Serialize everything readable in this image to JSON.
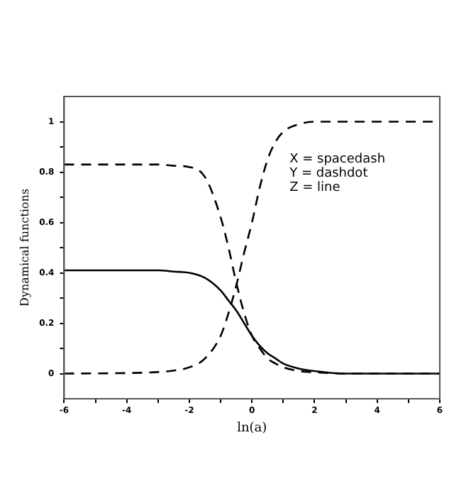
{
  "chart_data": {
    "type": "line",
    "xlabel": "ln(a)",
    "ylabel": "Dynamical functions",
    "xlim": [
      -6,
      6
    ],
    "ylim": [
      -0.1,
      1.1
    ],
    "xticks": [
      -6,
      {
        "value": -5,
        "label": null
      },
      -4,
      {
        "value": -3,
        "label": null
      },
      -2,
      {
        "value": -1,
        "label": null
      },
      0,
      {
        "value": 1,
        "label": null
      },
      2,
      {
        "value": 3,
        "label": null
      },
      4,
      {
        "value": 5,
        "label": null
      },
      6
    ],
    "yticks": [
      0,
      {
        "value": 0.1,
        "label": null
      },
      0.2,
      {
        "value": 0.3,
        "label": null
      },
      0.4,
      {
        "value": 0.5,
        "label": null
      },
      0.6,
      {
        "value": 0.7,
        "label": null
      },
      0.8,
      {
        "value": 0.9,
        "label": null
      },
      1
    ],
    "grid": false,
    "legend": false,
    "marker": "none",
    "annotations": [
      "X = spacedash",
      "Y = dashdot",
      "Z = line"
    ],
    "series": [
      {
        "color": "#000000",
        "line_style": "dashed",
        "x": [
          -6,
          -4,
          -3,
          -2.5,
          -2,
          -1.5,
          -1,
          -0.75,
          -0.5,
          -0.25,
          0,
          0.25,
          0.5,
          0.75,
          1,
          1.5,
          2,
          3,
          4,
          6
        ],
        "values": [
          0,
          0.002,
          0.006,
          0.012,
          0.025,
          0.06,
          0.15,
          0.24,
          0.35,
          0.48,
          0.6,
          0.74,
          0.85,
          0.92,
          0.96,
          0.99,
          1,
          1,
          1,
          1
        ]
      },
      {
        "color": "#000000",
        "line_style": "dashed",
        "x": [
          -6,
          -4,
          -3,
          -2.5,
          -2,
          -1.5,
          -1,
          -0.75,
          -0.5,
          -0.25,
          0,
          0.25,
          0.5,
          0.75,
          1,
          1.5,
          2,
          3,
          4,
          6
        ],
        "values": [
          0.83,
          0.83,
          0.83,
          0.825,
          0.82,
          0.78,
          0.62,
          0.5,
          0.36,
          0.24,
          0.15,
          0.1,
          0.06,
          0.04,
          0.025,
          0.01,
          0.005,
          0,
          0,
          0
        ]
      },
      {
        "color": "#000000",
        "line_style": "solid",
        "x": [
          -6,
          -4,
          -3,
          -2.5,
          -2,
          -1.5,
          -1,
          -0.75,
          -0.5,
          -0.25,
          0,
          0.25,
          0.5,
          0.75,
          1,
          1.5,
          2,
          3,
          4,
          6
        ],
        "values": [
          0.41,
          0.41,
          0.41,
          0.405,
          0.4,
          0.38,
          0.33,
          0.29,
          0.25,
          0.2,
          0.15,
          0.11,
          0.08,
          0.06,
          0.04,
          0.02,
          0.01,
          0,
          0,
          0
        ]
      }
    ]
  }
}
